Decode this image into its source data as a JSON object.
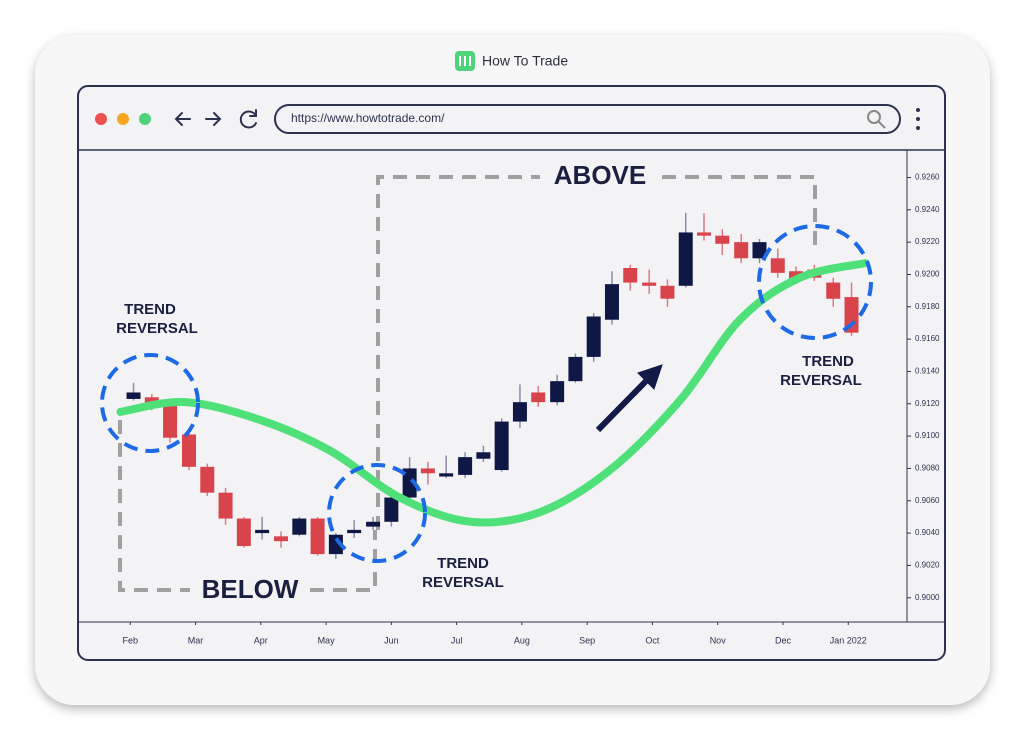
{
  "header": {
    "brand": "How To Trade"
  },
  "browser": {
    "url": "https://www.howtotrade.com/"
  },
  "chart_data": {
    "type": "candlestick",
    "up_color": "#0f1745",
    "down_color": "#d9434b",
    "xlim": [
      -0.77,
      11.9
    ],
    "xticks": [
      {
        "value": 0,
        "label": "Feb"
      },
      {
        "value": 1,
        "label": "Mar"
      },
      {
        "value": 2,
        "label": "Apr"
      },
      {
        "value": 3,
        "label": "May"
      },
      {
        "value": 4,
        "label": "Jun"
      },
      {
        "value": 5,
        "label": "Jul"
      },
      {
        "value": 6,
        "label": "Aug"
      },
      {
        "value": 7,
        "label": "Sep"
      },
      {
        "value": 8,
        "label": "Oct"
      },
      {
        "value": 9,
        "label": "Nov"
      },
      {
        "value": 10,
        "label": "Dec"
      },
      {
        "value": 11,
        "label": "Jan 2022"
      }
    ],
    "ylim": [
      0.8985,
      0.9277
    ],
    "yticks": [
      {
        "value": 0.9,
        "label": "0.9000"
      },
      {
        "value": 0.902,
        "label": "0.9020"
      },
      {
        "value": 0.904,
        "label": "0.9040"
      },
      {
        "value": 0.906,
        "label": "0.9060"
      },
      {
        "value": 0.908,
        "label": "0.9080"
      },
      {
        "value": 0.91,
        "label": "0.9100"
      },
      {
        "value": 0.912,
        "label": "0.9120"
      },
      {
        "value": 0.914,
        "label": "0.9140"
      },
      {
        "value": 0.916,
        "label": "0.9160"
      },
      {
        "value": 0.918,
        "label": "0.9180"
      },
      {
        "value": 0.92,
        "label": "0.9200"
      },
      {
        "value": 0.922,
        "label": "0.9220"
      },
      {
        "value": 0.924,
        "label": "0.9240"
      },
      {
        "value": 0.926,
        "label": "0.9260"
      }
    ],
    "x": [
      0.05,
      0.33,
      0.61,
      0.9,
      1.18,
      1.46,
      1.74,
      2.02,
      2.31,
      2.59,
      2.87,
      3.15,
      3.43,
      3.72,
      4.0,
      4.28,
      4.56,
      4.84,
      5.13,
      5.41,
      5.69,
      5.97,
      6.25,
      6.54,
      6.82,
      7.1,
      7.38,
      7.66,
      7.95,
      8.23,
      8.51,
      8.79,
      9.07,
      9.36,
      9.64,
      9.92,
      10.2,
      10.48,
      10.77,
      11.05
    ],
    "open": [
      0.9123,
      0.9124,
      0.9121,
      0.9101,
      0.9081,
      0.9065,
      0.9049,
      0.904,
      0.9038,
      0.9039,
      0.9049,
      0.9027,
      0.904,
      0.9044,
      0.9047,
      0.9062,
      0.908,
      0.9075,
      0.9076,
      0.9086,
      0.9079,
      0.9109,
      0.9127,
      0.9121,
      0.9134,
      0.9149,
      0.9172,
      0.9204,
      0.9195,
      0.9193,
      0.9193,
      0.9226,
      0.9224,
      0.922,
      0.921,
      0.921,
      0.9202,
      0.9203,
      0.9195,
      0.9186
    ],
    "high": [
      0.9133,
      0.9126,
      0.9123,
      0.9102,
      0.9083,
      0.9068,
      0.905,
      0.905,
      0.9041,
      0.905,
      0.905,
      0.904,
      0.9048,
      0.905,
      0.9068,
      0.9087,
      0.9084,
      0.9088,
      0.909,
      0.9094,
      0.9111,
      0.9132,
      0.9131,
      0.9138,
      0.9151,
      0.9176,
      0.9202,
      0.9206,
      0.9203,
      0.9197,
      0.9238,
      0.9238,
      0.9228,
      0.9225,
      0.9222,
      0.9216,
      0.9205,
      0.9206,
      0.9198,
      0.9195
    ],
    "low": [
      0.9122,
      0.9116,
      0.9096,
      0.9079,
      0.9063,
      0.9045,
      0.9031,
      0.9036,
      0.9031,
      0.9038,
      0.9026,
      0.9024,
      0.9037,
      0.9042,
      0.9044,
      0.9058,
      0.907,
      0.9074,
      0.9074,
      0.9084,
      0.9078,
      0.9105,
      0.9118,
      0.9119,
      0.9133,
      0.9146,
      0.9169,
      0.919,
      0.9188,
      0.918,
      0.9192,
      0.9221,
      0.9212,
      0.9207,
      0.9207,
      0.9198,
      0.9194,
      0.9196,
      0.918,
      0.9162
    ],
    "close": [
      0.9127,
      0.9118,
      0.9099,
      0.9081,
      0.9065,
      0.9049,
      0.9032,
      0.9042,
      0.9035,
      0.9049,
      0.9027,
      0.9039,
      0.9042,
      0.9047,
      0.9062,
      0.908,
      0.9077,
      0.9077,
      0.9087,
      0.909,
      0.9109,
      0.9121,
      0.9121,
      0.9134,
      0.9149,
      0.9174,
      0.9194,
      0.9195,
      0.9193,
      0.9185,
      0.9226,
      0.9224,
      0.9219,
      0.921,
      0.922,
      0.9201,
      0.9196,
      0.9198,
      0.9185,
      0.9164
    ],
    "trend_curve": {
      "color": "#4fe07a",
      "x": [
        -0.15,
        0.84,
        1.99,
        3.06,
        4.13,
        5.21,
        6.28,
        7.35,
        8.42,
        9.34,
        10.26,
        11.26
      ],
      "values": [
        0.9115,
        0.9121,
        0.911,
        0.9091,
        0.9062,
        0.9047,
        0.9053,
        0.9079,
        0.9122,
        0.9172,
        0.9198,
        0.9207
      ]
    },
    "annotations": [
      {
        "lines": [
          "TREND",
          "REVERSAL"
        ]
      },
      {
        "lines": [
          "TREND",
          "REVERSAL"
        ]
      },
      {
        "lines": [
          "TREND",
          "REVERSAL"
        ]
      },
      {
        "text": "ABOVE"
      },
      {
        "text": "BELOW"
      }
    ]
  }
}
